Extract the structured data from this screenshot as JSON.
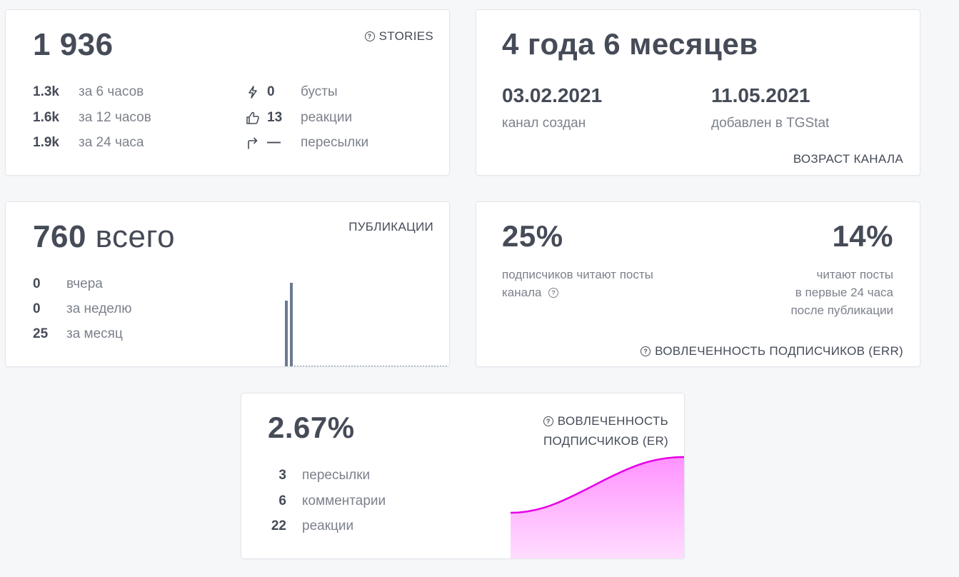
{
  "stories": {
    "total": "1 936",
    "label": "STORIES",
    "rows": [
      {
        "value": "1.3k",
        "label": "за 6 часов"
      },
      {
        "value": "1.6k",
        "label": "за 12 часов"
      },
      {
        "value": "1.9k",
        "label": "за 24 часа"
      }
    ],
    "stats": [
      {
        "icon": "lightning-icon",
        "value": "0",
        "label": "бусты"
      },
      {
        "icon": "thumbs-up-icon",
        "value": "13",
        "label": "реакции"
      },
      {
        "icon": "forward-arrow-icon",
        "value": "—",
        "label": "пересылки"
      }
    ]
  },
  "age": {
    "duration": "4 года 6 месяцев",
    "created_date": "03.02.2021",
    "created_label": "канал создан",
    "added_date": "11.05.2021",
    "added_label": "добавлен в TGStat",
    "label": "ВОЗРАСТ КАНАЛА"
  },
  "posts": {
    "total_num": "760",
    "total_word": "всего",
    "label": "ПУБЛИКАЦИИ",
    "rows": [
      {
        "value": "0",
        "label": "вчера"
      },
      {
        "value": "0",
        "label": "за неделю"
      },
      {
        "value": "25",
        "label": "за месяц"
      }
    ]
  },
  "err": {
    "percent_subscribers": "25%",
    "desc_line1": "подписчиков читают посты",
    "desc_line2": "канала",
    "percent_24h": "14%",
    "desc24_line1": "читают посты",
    "desc24_line2": "в первые 24 часа",
    "desc24_line3": "после публикации",
    "label": "ВОВЛЕЧЕННОСТЬ ПОДПИСЧИКОВ (ERR)"
  },
  "er": {
    "percent": "2.67%",
    "label_line1": "ВОВЛЕЧЕННОСТЬ",
    "label_line2": "ПОДПИСЧИКОВ (ER)",
    "rows": [
      {
        "value": "3",
        "label": "пересылки"
      },
      {
        "value": "6",
        "label": "комментарии"
      },
      {
        "value": "22",
        "label": "реакции"
      }
    ]
  },
  "colors": {
    "text": "#454b57",
    "muted": "#7c818b",
    "bar": "#6b7a8f",
    "er_line": "#e600e6",
    "er_fill": "#ff8cff"
  }
}
